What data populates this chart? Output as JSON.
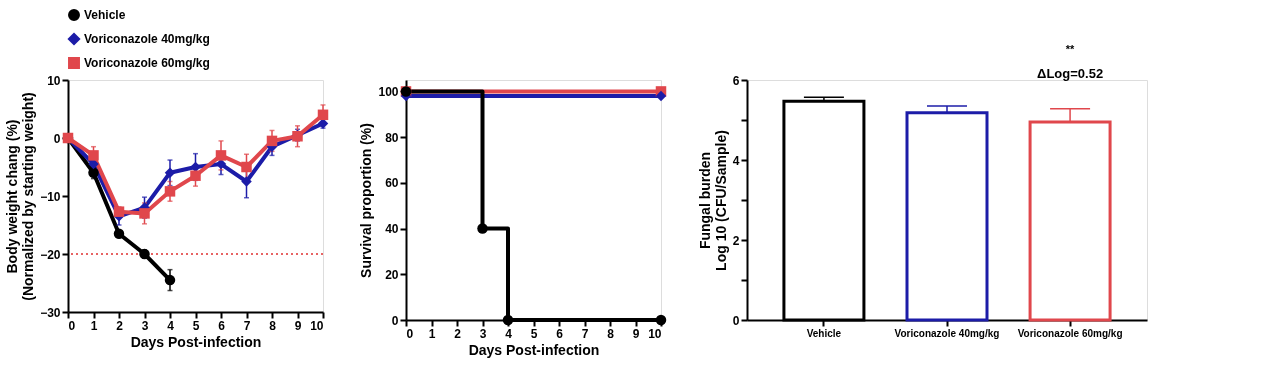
{
  "chart_data": [
    {
      "type": "line",
      "xlabel": "Days  Post-infection",
      "ylabel": [
        "Body weight chang (%)",
        "(Normalized by starting weight)"
      ],
      "x": [
        0,
        1,
        2,
        3,
        4,
        5,
        6,
        7,
        8,
        9,
        10
      ],
      "xlim": [
        0,
        10
      ],
      "xticks": [
        0,
        1,
        2,
        3,
        4,
        5,
        6,
        7,
        8,
        9,
        10
      ],
      "ylim": [
        -30,
        10
      ],
      "yticks": [
        -30,
        -20,
        -10,
        0,
        10
      ],
      "series": [
        {
          "name": "Vehicle",
          "color": "#000000",
          "marker": "circle",
          "values": [
            0,
            -6,
            -16.5,
            -20,
            -24.5,
            null,
            null,
            null,
            null,
            null,
            null
          ],
          "errors": [
            null,
            1,
            0.5,
            0.7,
            1.8,
            null,
            null,
            null,
            null,
            null,
            null
          ]
        },
        {
          "name": "Voriconazole 40mg/kg",
          "color": "#1c1ca8",
          "marker": "diamond",
          "values": [
            0,
            -4.5,
            -13.5,
            -12,
            -6,
            -5,
            -4.5,
            -7.5,
            -1.5,
            0.5,
            2.5
          ],
          "errors": [
            null,
            1,
            1.5,
            1.8,
            2.2,
            2.3,
            1.8,
            2.8,
            1.5,
            1,
            0.8
          ]
        },
        {
          "name": "Voriconazole 60mg/kg",
          "color": "#e0474c",
          "marker": "square",
          "values": [
            0,
            -3,
            -12.7,
            -13,
            -9.2,
            -6.5,
            -3,
            -5,
            -0.5,
            0.3,
            4
          ],
          "errors": [
            null,
            1.5,
            0.8,
            1.8,
            1.7,
            1.8,
            2.5,
            2.2,
            1.8,
            1.8,
            1.7
          ]
        }
      ],
      "ref_lines": [
        {
          "axis": "y",
          "value": -20,
          "color": "#e03030",
          "line_style": "dotted"
        }
      ],
      "legend": "top left",
      "grid": false
    },
    {
      "type": "step",
      "xlabel": "Days  Post-infection",
      "ylabel": "Survival proportion (%)",
      "xlim": [
        0,
        10
      ],
      "xticks": [
        0,
        1,
        2,
        3,
        4,
        5,
        6,
        7,
        8,
        9,
        10
      ],
      "ylim": [
        0,
        105
      ],
      "yticks": [
        0,
        20,
        40,
        60,
        80,
        100
      ],
      "series": [
        {
          "color": "#e0474c",
          "marker": "square",
          "x": [
            0,
            10
          ],
          "values": [
            100,
            100
          ]
        },
        {
          "color": "#1c1ca8",
          "marker": "diamond",
          "x": [
            0,
            10
          ],
          "values": [
            98,
            98
          ]
        },
        {
          "color": "#000000",
          "marker": "circle",
          "x": [
            0,
            3,
            4,
            10
          ],
          "values": [
            100,
            40,
            0,
            0
          ]
        }
      ],
      "legend": false,
      "grid": false
    },
    {
      "type": "bar",
      "ylabel": [
        "Fungal burden",
        "Log 10 (CFU/Sample)"
      ],
      "categories": [
        "Vehicle",
        "Voriconazole 40mg/kg",
        "Voriconazole 60mg/kg"
      ],
      "values": [
        5.47,
        5.18,
        4.95
      ],
      "colors": [
        "#000000",
        "#1c1ca8",
        "#e0474c"
      ],
      "errors": [
        [
          5.47,
          5.57
        ],
        [
          5.18,
          5.35
        ],
        [
          4.95,
          5.28
        ]
      ],
      "ylim": [
        0,
        6
      ],
      "yticks": [
        0,
        {
          "value": 1,
          "label": null
        },
        2,
        {
          "value": 3,
          "label": null
        },
        4,
        {
          "value": 5,
          "label": null
        },
        6
      ],
      "annotations": [
        "**",
        "ΔLog=0.52"
      ],
      "grid": false
    }
  ]
}
